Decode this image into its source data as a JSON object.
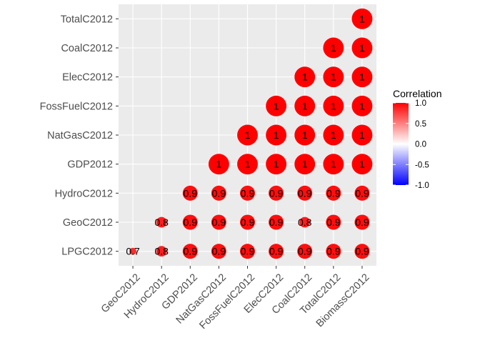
{
  "chart_data": {
    "type": "heatmap",
    "subtype": "correlogram-circle",
    "x_categories": [
      "GeoC2012",
      "HydroC2012",
      "GDP2012",
      "NatGasC2012",
      "FossFuelC2012",
      "ElecC2012",
      "CoalC2012",
      "TotalC2012",
      "BiomassC2012"
    ],
    "y_categories": [
      "LPGC2012",
      "GeoC2012",
      "HydroC2012",
      "GDP2012",
      "NatGasC2012",
      "FossFuelC2012",
      "ElecC2012",
      "CoalC2012",
      "TotalC2012"
    ],
    "cells": [
      {
        "x": "GeoC2012",
        "y": "LPGC2012",
        "value": 0.7,
        "label": "0.7"
      },
      {
        "x": "HydroC2012",
        "y": "LPGC2012",
        "value": 0.8,
        "label": "0.8"
      },
      {
        "x": "HydroC2012",
        "y": "GeoC2012",
        "value": 0.8,
        "label": "0.8"
      },
      {
        "x": "GDP2012",
        "y": "LPGC2012",
        "value": 0.9,
        "label": "0.9"
      },
      {
        "x": "GDP2012",
        "y": "GeoC2012",
        "value": 0.9,
        "label": "0.9"
      },
      {
        "x": "GDP2012",
        "y": "HydroC2012",
        "value": 0.9,
        "label": "0.9"
      },
      {
        "x": "NatGasC2012",
        "y": "LPGC2012",
        "value": 0.9,
        "label": "0.9"
      },
      {
        "x": "NatGasC2012",
        "y": "GeoC2012",
        "value": 0.9,
        "label": "0.9"
      },
      {
        "x": "NatGasC2012",
        "y": "HydroC2012",
        "value": 0.9,
        "label": "0.9"
      },
      {
        "x": "NatGasC2012",
        "y": "GDP2012",
        "value": 1.0,
        "label": "1"
      },
      {
        "x": "FossFuelC2012",
        "y": "LPGC2012",
        "value": 0.9,
        "label": "0.9"
      },
      {
        "x": "FossFuelC2012",
        "y": "GeoC2012",
        "value": 0.9,
        "label": "0.9"
      },
      {
        "x": "FossFuelC2012",
        "y": "HydroC2012",
        "value": 0.9,
        "label": "0.9"
      },
      {
        "x": "FossFuelC2012",
        "y": "GDP2012",
        "value": 1.0,
        "label": "1"
      },
      {
        "x": "FossFuelC2012",
        "y": "NatGasC2012",
        "value": 1.0,
        "label": "1"
      },
      {
        "x": "ElecC2012",
        "y": "LPGC2012",
        "value": 0.9,
        "label": "0.9"
      },
      {
        "x": "ElecC2012",
        "y": "GeoC2012",
        "value": 0.9,
        "label": "0.9"
      },
      {
        "x": "ElecC2012",
        "y": "HydroC2012",
        "value": 0.9,
        "label": "0.9"
      },
      {
        "x": "ElecC2012",
        "y": "GDP2012",
        "value": 1.0,
        "label": "1"
      },
      {
        "x": "ElecC2012",
        "y": "NatGasC2012",
        "value": 1.0,
        "label": "1"
      },
      {
        "x": "ElecC2012",
        "y": "FossFuelC2012",
        "value": 1.0,
        "label": "1"
      },
      {
        "x": "CoalC2012",
        "y": "LPGC2012",
        "value": 0.9,
        "label": "0.9"
      },
      {
        "x": "CoalC2012",
        "y": "GeoC2012",
        "value": 0.8,
        "label": "0.8"
      },
      {
        "x": "CoalC2012",
        "y": "HydroC2012",
        "value": 0.9,
        "label": "0.9"
      },
      {
        "x": "CoalC2012",
        "y": "GDP2012",
        "value": 1.0,
        "label": "1"
      },
      {
        "x": "CoalC2012",
        "y": "NatGasC2012",
        "value": 1.0,
        "label": "1"
      },
      {
        "x": "CoalC2012",
        "y": "FossFuelC2012",
        "value": 1.0,
        "label": "1"
      },
      {
        "x": "CoalC2012",
        "y": "ElecC2012",
        "value": 1.0,
        "label": "1"
      },
      {
        "x": "TotalC2012",
        "y": "LPGC2012",
        "value": 0.9,
        "label": "0.9"
      },
      {
        "x": "TotalC2012",
        "y": "GeoC2012",
        "value": 0.9,
        "label": "0.9"
      },
      {
        "x": "TotalC2012",
        "y": "HydroC2012",
        "value": 0.9,
        "label": "0.9"
      },
      {
        "x": "TotalC2012",
        "y": "GDP2012",
        "value": 1.0,
        "label": "1"
      },
      {
        "x": "TotalC2012",
        "y": "NatGasC2012",
        "value": 1.0,
        "label": "1"
      },
      {
        "x": "TotalC2012",
        "y": "FossFuelC2012",
        "value": 1.0,
        "label": "1"
      },
      {
        "x": "TotalC2012",
        "y": "ElecC2012",
        "value": 1.0,
        "label": "1"
      },
      {
        "x": "TotalC2012",
        "y": "CoalC2012",
        "value": 1.0,
        "label": "1"
      },
      {
        "x": "BiomassC2012",
        "y": "LPGC2012",
        "value": 0.9,
        "label": "0.9"
      },
      {
        "x": "BiomassC2012",
        "y": "GeoC2012",
        "value": 0.9,
        "label": "0.9"
      },
      {
        "x": "BiomassC2012",
        "y": "HydroC2012",
        "value": 0.9,
        "label": "0.9"
      },
      {
        "x": "BiomassC2012",
        "y": "GDP2012",
        "value": 1.0,
        "label": "1"
      },
      {
        "x": "BiomassC2012",
        "y": "NatGasC2012",
        "value": 1.0,
        "label": "1"
      },
      {
        "x": "BiomassC2012",
        "y": "FossFuelC2012",
        "value": 1.0,
        "label": "1"
      },
      {
        "x": "BiomassC2012",
        "y": "ElecC2012",
        "value": 1.0,
        "label": "1"
      },
      {
        "x": "BiomassC2012",
        "y": "CoalC2012",
        "value": 1.0,
        "label": "1"
      },
      {
        "x": "BiomassC2012",
        "y": "TotalC2012",
        "value": 1.0,
        "label": "1"
      }
    ],
    "legend": {
      "title": "Correlation",
      "position": "right",
      "ticks": [
        "1.0",
        "0.5",
        "0.0",
        "-0.5",
        "-1.0"
      ],
      "tick_values": [
        1.0,
        0.5,
        0.0,
        -0.5,
        -1.0
      ],
      "range": [
        -1,
        1
      ]
    },
    "colors": {
      "low": "#0000FF",
      "mid": "#FFFFFF",
      "high": "#FF0000",
      "panel_background": "#EBEBEB",
      "grid": "#FFFFFF"
    },
    "grid": true
  }
}
